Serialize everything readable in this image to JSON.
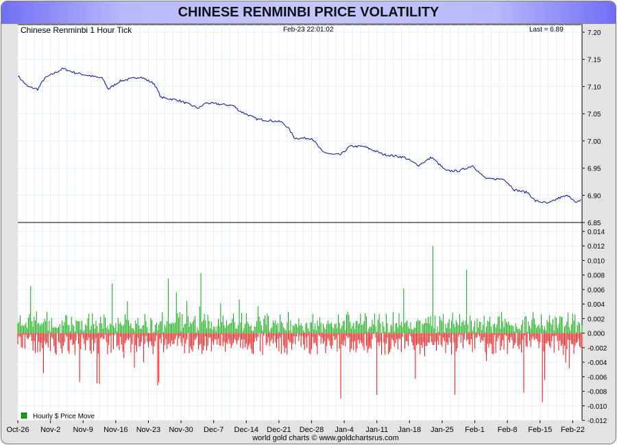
{
  "title": "CHINESE RENMINBI PRICE VOLATILITY",
  "footer": "world gold charts © www.goldchartsrus.com",
  "chart_data": [
    {
      "type": "line",
      "title": "Chinese Renminbi 1 Hour Tick",
      "timestamp": "Feb-23  22:01:02",
      "last_label": "Last = 6.89",
      "color": "#0000cc",
      "ylim": [
        6.85,
        7.2
      ],
      "yticks": [
        "7.20",
        "7.15",
        "7.10",
        "7.05",
        "7.00",
        "6.95",
        "6.90",
        "6.85"
      ],
      "xlim_days": [
        0,
        121
      ],
      "points_day_price": [
        [
          0,
          7.12
        ],
        [
          2.1,
          7.1
        ],
        [
          4.3,
          7.095
        ],
        [
          5.7,
          7.115
        ],
        [
          9.7,
          7.133
        ],
        [
          12.4,
          7.125
        ],
        [
          18.2,
          7.115
        ],
        [
          19.4,
          7.095
        ],
        [
          21.9,
          7.11
        ],
        [
          26.3,
          7.118
        ],
        [
          29.3,
          7.105
        ],
        [
          30.7,
          7.08
        ],
        [
          34.4,
          7.075
        ],
        [
          38.8,
          7.06
        ],
        [
          40.3,
          7.07
        ],
        [
          46.2,
          7.065
        ],
        [
          47.6,
          7.055
        ],
        [
          51.3,
          7.04
        ],
        [
          56.5,
          7.035
        ],
        [
          57.9,
          7.025
        ],
        [
          59.4,
          7.005
        ],
        [
          63.1,
          7.005
        ],
        [
          65.3,
          6.98
        ],
        [
          67.5,
          6.975
        ],
        [
          69.3,
          6.975
        ],
        [
          71.2,
          6.99
        ],
        [
          74.1,
          6.99
        ],
        [
          78.5,
          6.975
        ],
        [
          82.9,
          6.97
        ],
        [
          85.9,
          6.955
        ],
        [
          88.8,
          6.97
        ],
        [
          91.8,
          6.945
        ],
        [
          94.7,
          6.945
        ],
        [
          97.6,
          6.955
        ],
        [
          99.1,
          6.94
        ],
        [
          100.6,
          6.93
        ],
        [
          104.3,
          6.93
        ],
        [
          106.5,
          6.91
        ],
        [
          109.4,
          6.905
        ],
        [
          110.9,
          6.89
        ],
        [
          113.8,
          6.885
        ],
        [
          116.0,
          6.895
        ],
        [
          118.2,
          6.9
        ],
        [
          119.7,
          6.885
        ],
        [
          120.9,
          6.893
        ]
      ]
    },
    {
      "type": "bar",
      "legend": "Hourly $ Price Move",
      "legend_placement": "bottom-left",
      "pos_color": "#00aa00",
      "neg_color": "#ff0000",
      "ylim": [
        -0.012,
        0.014
      ],
      "yticks": [
        "0.014",
        "0.012",
        "0.010",
        "0.008",
        "0.006",
        "0.004",
        "0.002",
        "0.000",
        "-0.002",
        "-0.004",
        "-0.006",
        "-0.008",
        "-0.010",
        "-0.012"
      ],
      "typical_abs_move": 0.002,
      "spikes_day_value": [
        [
          2.8,
          0.0065
        ],
        [
          32.3,
          0.0075
        ],
        [
          39.3,
          0.0083
        ],
        [
          89.0,
          0.012
        ],
        [
          96.2,
          0.0087
        ],
        [
          69.3,
          -0.009
        ],
        [
          77.1,
          -0.0085
        ],
        [
          93.7,
          -0.0085
        ],
        [
          112.4,
          -0.0095
        ],
        [
          17.6,
          -0.007
        ],
        [
          30.0,
          -0.0072
        ],
        [
          108.5,
          -0.0082
        ]
      ]
    }
  ],
  "x_ticks": [
    "Oct-26",
    "Nov-2",
    "Nov-9",
    "Nov-16",
    "Nov-23",
    "Nov-30",
    "Dec-7",
    "Dec-14",
    "Dec-21",
    "Dec-28",
    "Jan-4",
    "Jan-11",
    "Jan-18",
    "Jan-25",
    "Feb-1",
    "Feb-8",
    "Feb-15",
    "Feb-22"
  ]
}
